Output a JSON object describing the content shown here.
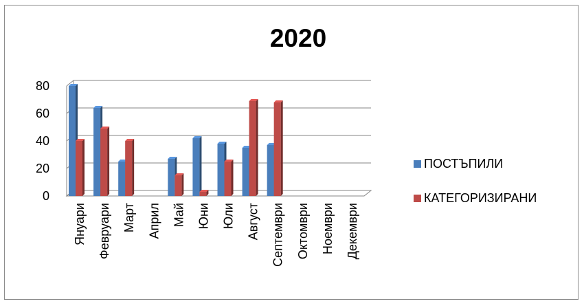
{
  "chart_data": {
    "type": "bar",
    "title": "2020",
    "categories": [
      "Януари",
      "Февруари",
      "Март",
      "Април",
      "Май",
      "Юни",
      "Юли",
      "Август",
      "Септември",
      "Октомври",
      "Ноември",
      "Декември"
    ],
    "series": [
      {
        "name": "ПОСТЪПИЛИ",
        "values": [
          80,
          64,
          25,
          0,
          27,
          42,
          38,
          35,
          37,
          0,
          0,
          0
        ],
        "color": "#4a7ebb"
      },
      {
        "name": "КАТЕГОРИЗИРАНИ",
        "values": [
          40,
          49,
          40,
          0,
          15,
          3,
          25,
          69,
          68,
          0,
          0,
          0
        ],
        "color": "#be4b48"
      }
    ],
    "yticks": [
      "0",
      "20",
      "40",
      "60",
      "80"
    ],
    "ylim": [
      0,
      80
    ],
    "grid": true,
    "legend": "right",
    "chart_style": "3d-clustered-column"
  }
}
